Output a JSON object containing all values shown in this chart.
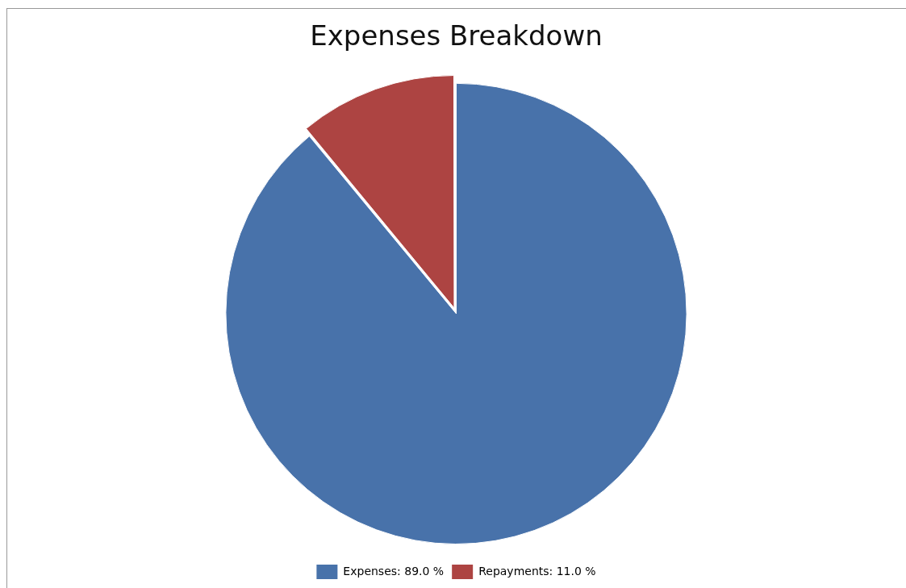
{
  "chart_data": {
    "type": "pie",
    "title": "Expenses Breakdown",
    "categories": [
      "Expenses",
      "Repayments"
    ],
    "values": [
      89.0,
      11.0
    ],
    "value_labels": [
      "89.0 %",
      "11.0 %"
    ],
    "colors": [
      "#4872aa",
      "#ad4442"
    ],
    "legend": "bottom"
  }
}
